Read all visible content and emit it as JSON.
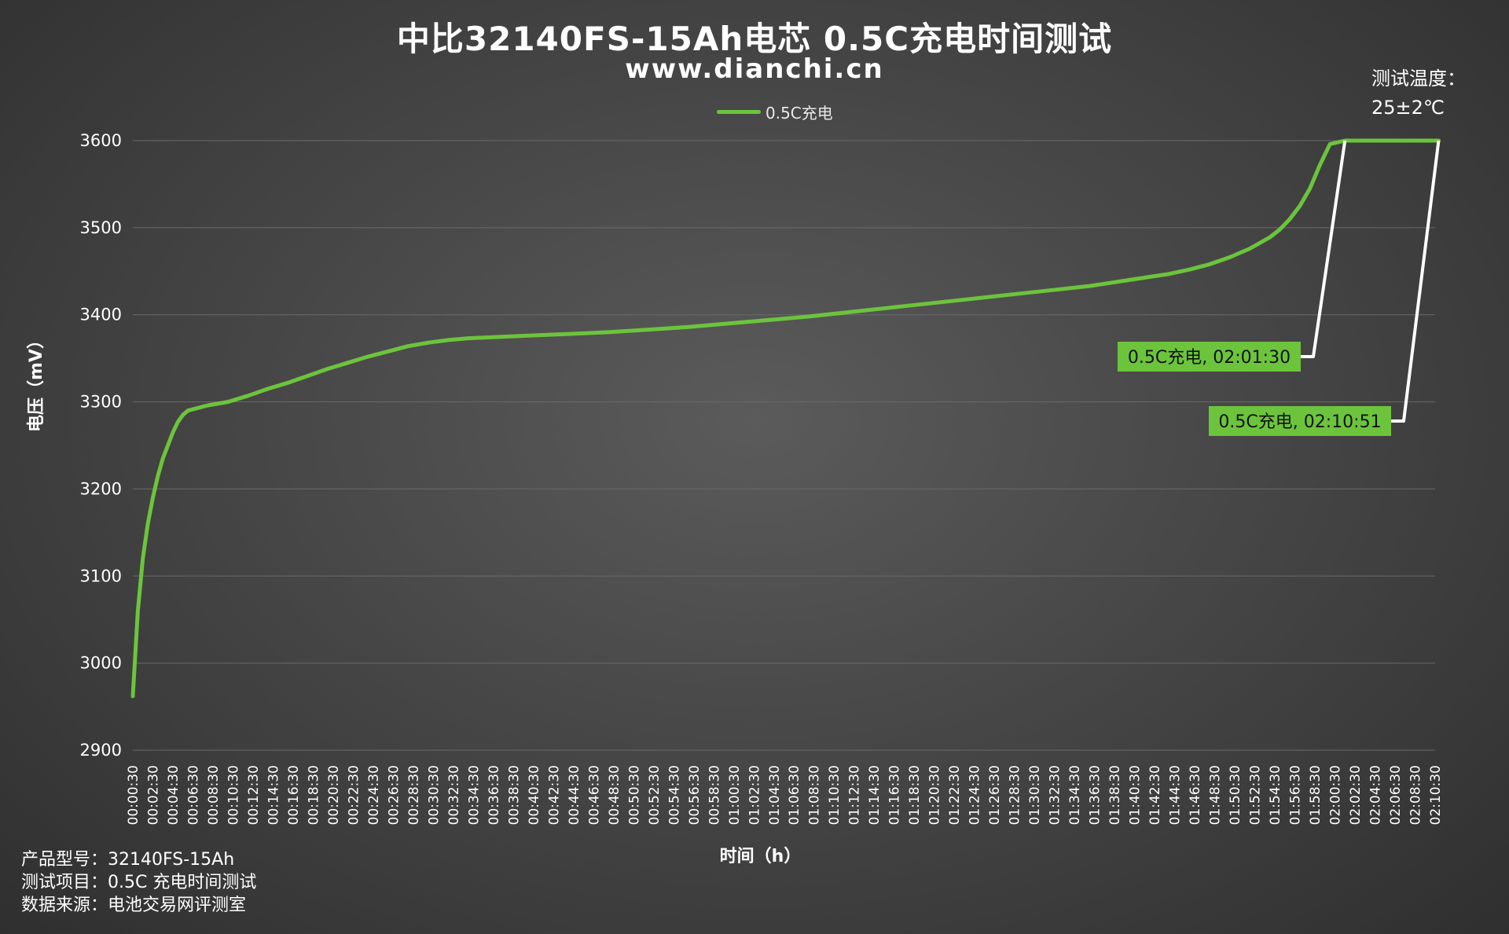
{
  "title": "中比32140FS-15Ah电芯 0.5C充电时间测试",
  "subtitle": "www.dianchi.cn",
  "temperature": {
    "line1": "测试温度：",
    "line2": "25±2℃"
  },
  "footer": {
    "product": "产品型号：32140FS-15Ah",
    "test_item": "测试项目：0.5C 充电时间测试",
    "source": "数据来源：电池交易网评测室"
  },
  "colors": {
    "series": "#6cc43c",
    "grid": "#6a6a6a",
    "leader": "#ffffff",
    "background": "#484848"
  },
  "chart_data": {
    "type": "line",
    "title": "中比32140FS-15Ah电芯 0.5C充电时间测试",
    "xlabel": "时间（h）",
    "ylabel": "电压（mV）",
    "ylim": [
      2900,
      3600
    ],
    "yticks": [
      2900,
      3000,
      3100,
      3200,
      3300,
      3400,
      3500,
      3600
    ],
    "grid": true,
    "legend_position": "top-center",
    "categories": [
      "00:00:30",
      "00:02:30",
      "00:04:30",
      "00:06:30",
      "00:08:30",
      "00:10:30",
      "00:12:30",
      "00:14:30",
      "00:16:30",
      "00:18:30",
      "00:20:30",
      "00:22:30",
      "00:24:30",
      "00:26:30",
      "00:28:30",
      "00:30:30",
      "00:32:30",
      "00:34:30",
      "00:36:30",
      "00:38:30",
      "00:40:30",
      "00:42:30",
      "00:44:30",
      "00:46:30",
      "00:48:30",
      "00:50:30",
      "00:52:30",
      "00:54:30",
      "00:56:30",
      "00:58:30",
      "01:00:30",
      "01:02:30",
      "01:04:30",
      "01:06:30",
      "01:08:30",
      "01:10:30",
      "01:12:30",
      "01:14:30",
      "01:16:30",
      "01:18:30",
      "01:20:30",
      "01:22:30",
      "01:24:30",
      "01:26:30",
      "01:28:30",
      "01:30:30",
      "01:32:30",
      "01:34:30",
      "01:36:30",
      "01:38:30",
      "01:40:30",
      "01:42:30",
      "01:44:30",
      "01:46:30",
      "01:48:30",
      "01:50:30",
      "01:52:30",
      "01:54:30",
      "01:56:30",
      "01:58:30",
      "02:00:30",
      "02:02:30",
      "02:04:30",
      "02:06:30",
      "02:08:30",
      "02:10:30"
    ],
    "series": [
      {
        "name": "0.5C充电",
        "points": [
          [
            0.5,
            2962
          ],
          [
            1,
            3060
          ],
          [
            1.5,
            3120
          ],
          [
            2,
            3160
          ],
          [
            2.5,
            3190
          ],
          [
            3,
            3215
          ],
          [
            3.5,
            3235
          ],
          [
            4,
            3250
          ],
          [
            4.5,
            3265
          ],
          [
            5,
            3277
          ],
          [
            5.5,
            3285
          ],
          [
            6,
            3290
          ],
          [
            7,
            3293
          ],
          [
            8,
            3296
          ],
          [
            10,
            3300
          ],
          [
            12,
            3307
          ],
          [
            14,
            3315
          ],
          [
            16,
            3322
          ],
          [
            18,
            3330
          ],
          [
            20,
            3338
          ],
          [
            22,
            3345
          ],
          [
            24,
            3352
          ],
          [
            26,
            3358
          ],
          [
            28,
            3364
          ],
          [
            30,
            3368
          ],
          [
            32,
            3371
          ],
          [
            34,
            3373
          ],
          [
            36,
            3374
          ],
          [
            40,
            3376
          ],
          [
            44,
            3378
          ],
          [
            48,
            3380
          ],
          [
            52,
            3383
          ],
          [
            56,
            3386
          ],
          [
            60,
            3390
          ],
          [
            64,
            3394
          ],
          [
            68,
            3398
          ],
          [
            72,
            3403
          ],
          [
            76,
            3408
          ],
          [
            80,
            3413
          ],
          [
            84,
            3418
          ],
          [
            88,
            3423
          ],
          [
            92,
            3428
          ],
          [
            96,
            3433
          ],
          [
            100,
            3440
          ],
          [
            104,
            3447
          ],
          [
            106,
            3452
          ],
          [
            108,
            3458
          ],
          [
            110,
            3466
          ],
          [
            112,
            3476
          ],
          [
            114,
            3489
          ],
          [
            115,
            3498
          ],
          [
            116,
            3510
          ],
          [
            117,
            3525
          ],
          [
            118,
            3545
          ],
          [
            119,
            3572
          ],
          [
            120,
            3596
          ],
          [
            121.5,
            3600
          ],
          [
            130.85,
            3600
          ]
        ]
      }
    ],
    "annotations": [
      {
        "label": "0.5C充电, 02:01:30",
        "x": 121.5,
        "y": 3600
      },
      {
        "label": "0.5C充电, 02:10:51",
        "x": 130.85,
        "y": 3600
      }
    ]
  }
}
